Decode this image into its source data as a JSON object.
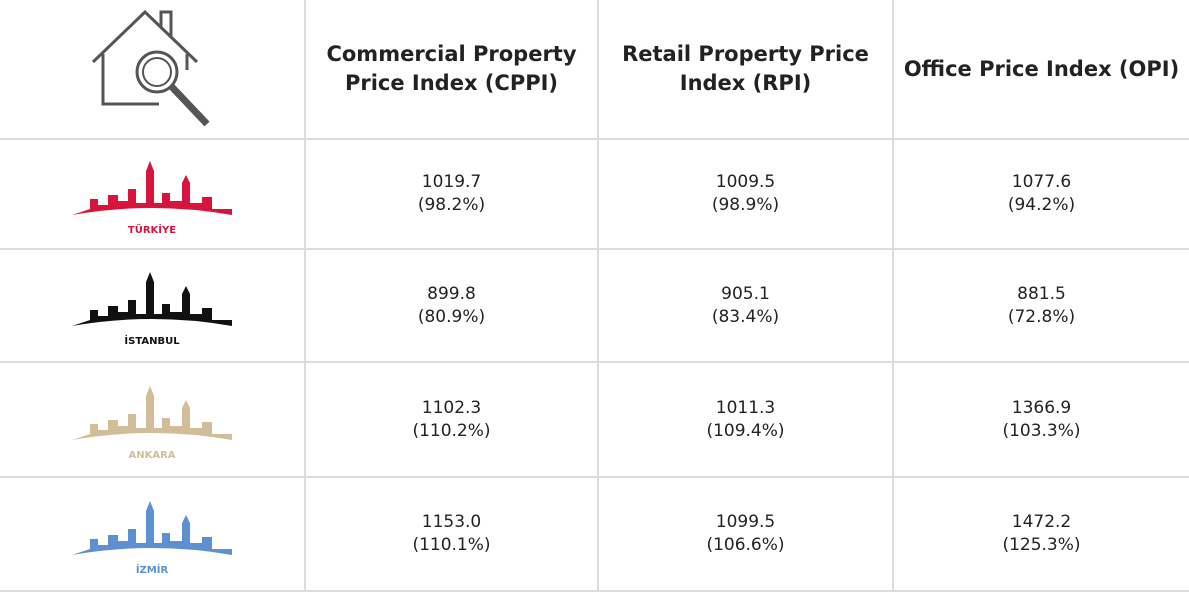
{
  "header": {
    "columns": [
      "Commercial Property Price Index (CPPI)",
      "Retail Property Price Index (RPI)",
      "Office Price Index (OPI)"
    ]
  },
  "rows": [
    {
      "region": "TÜRKİYE",
      "cells": [
        {
          "value": "1019.7",
          "change": "(98.2%)"
        },
        {
          "value": "1009.5",
          "change": "(98.9%)"
        },
        {
          "value": "1077.6",
          "change": "(94.2%)"
        }
      ]
    },
    {
      "region": "İSTANBUL",
      "cells": [
        {
          "value": "899.8",
          "change": "(80.9%)"
        },
        {
          "value": "905.1",
          "change": "(83.4%)"
        },
        {
          "value": "881.5",
          "change": "(72.8%)"
        }
      ]
    },
    {
      "region": "ANKARA",
      "cells": [
        {
          "value": "1102.3",
          "change": "(110.2%)"
        },
        {
          "value": "1011.3",
          "change": "(109.4%)"
        },
        {
          "value": "1366.9",
          "change": "(103.3%)"
        }
      ]
    },
    {
      "region": "İZMİR",
      "cells": [
        {
          "value": "1153.0",
          "change": "(110.1%)"
        },
        {
          "value": "1099.5",
          "change": "(106.6%)"
        },
        {
          "value": "1472.2",
          "change": "(125.3%)"
        }
      ]
    }
  ]
}
